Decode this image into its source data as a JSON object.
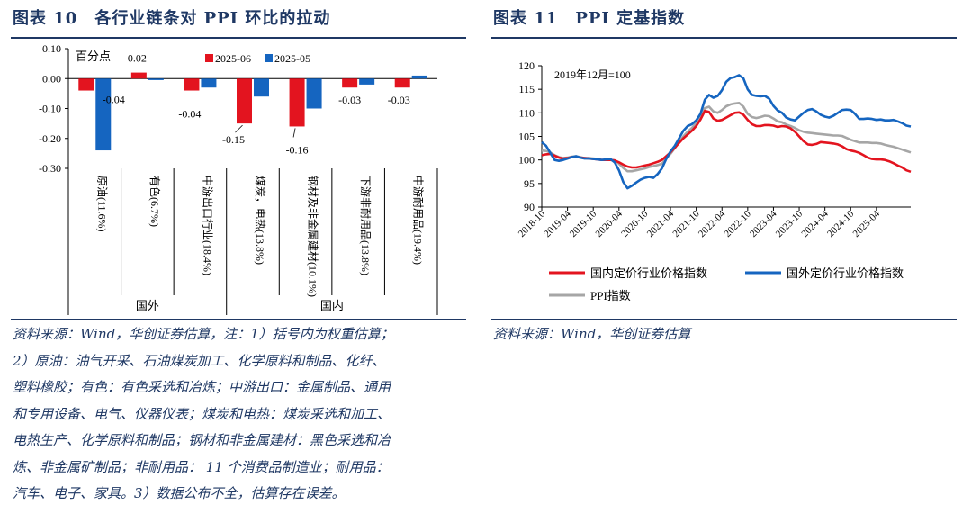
{
  "left": {
    "title": "图表 10　各行业链条对 PPI 环比的拉动",
    "source_lines": [
      "资料来源：Wind，华创证券估算，注：1）括号内为权重估算；",
      "2）原油：油气开采、石油煤炭加工、化学原料和制品、化纤、",
      "塑料橡胶；有色：有色采选和冶炼；中游出口：金属制品、通用",
      "和专用设备、电气、仪器仪表；煤炭和电热：煤炭采选和加工、",
      "电热生产、化学原料和制品；钢材和非金属建材：黑色采选和冶",
      "炼、非金属矿制品；非耐用品： 11 个消费品制造业；耐用品：",
      "汽车、电子、家具。3）数据公布不全，估算存在误差。"
    ]
  },
  "right": {
    "title": "图表 11　PPI 定基指数",
    "source": "资料来源：Wind，华创证券估算"
  },
  "chart_data": [
    {
      "type": "bar",
      "unit_label": "百分点",
      "categories": [
        "原油(11.6%)",
        "有色(6.7%)",
        "中游出口行业(18.4%)",
        "煤炭，电热(13.8%)",
        "钢材及非金属建材(10.1%)",
        "下游非耐用品(13.8%)",
        "中游耐用品(19.4%)"
      ],
      "groups": [
        {
          "label": "国外",
          "categories": [
            "原油(11.6%)",
            "有色(6.7%)",
            "中游出口行业(18.4%)"
          ]
        },
        {
          "label": "国内",
          "categories": [
            "煤炭，电热(13.8%)",
            "钢材及非金属建材(10.1%)",
            "下游非耐用品(13.8%)",
            "中游耐用品(19.4%)"
          ]
        }
      ],
      "series": [
        {
          "name": "2025-06",
          "color": "#e3141f",
          "values": [
            -0.04,
            0.02,
            -0.04,
            -0.15,
            -0.16,
            -0.03,
            -0.03
          ]
        },
        {
          "name": "2025-05",
          "color": "#1565c0",
          "values": [
            -0.24,
            -0.005,
            -0.03,
            -0.06,
            -0.1,
            -0.02,
            0.01
          ]
        }
      ],
      "data_labels": [
        "-0.04",
        "0.02",
        "-0.04",
        "-0.15",
        "-0.16",
        "-0.03",
        "-0.03"
      ],
      "ylim": [
        -0.3,
        0.1
      ],
      "yticks": [
        "0.10",
        "0.00",
        "-0.10",
        "-0.20",
        "-0.30"
      ],
      "legend": "top"
    },
    {
      "type": "line",
      "annotation": "2019年12月=100",
      "x_ticks": [
        "2018-10",
        "2019-04",
        "2019-10",
        "2020-04",
        "2020-10",
        "2021-04",
        "2021-10",
        "2022-04",
        "2022-10",
        "2023-04",
        "2023-10",
        "2024-04",
        "2024-10",
        "2025-04"
      ],
      "x_range": [
        "2018-10",
        "2025-06"
      ],
      "ylim": [
        90,
        120
      ],
      "yticks": [
        90,
        95,
        100,
        105,
        110,
        115,
        120
      ],
      "legend": "bottom",
      "series": [
        {
          "name": "国内定价行业价格指数",
          "color": "#e3141f",
          "values": [
            101.0,
            101.2,
            101.3,
            100.9,
            100.5,
            100.3,
            100.4,
            100.6,
            100.7,
            100.5,
            100.4,
            100.3,
            100.2,
            100.1,
            100.0,
            100.0,
            100.0,
            99.9,
            99.5,
            99.0,
            98.6,
            98.4,
            98.4,
            98.6,
            98.8,
            99.0,
            99.3,
            99.6,
            100.0,
            100.8,
            101.6,
            102.6,
            103.6,
            104.6,
            105.4,
            106.2,
            107.2,
            108.6,
            110.4,
            110.2,
            108.8,
            108.3,
            108.5,
            109.0,
            109.5,
            110.0,
            110.1,
            109.6,
            108.5,
            107.6,
            107.2,
            107.2,
            107.4,
            107.4,
            107.3,
            107.0,
            107.2,
            107.1,
            106.7,
            106.0,
            105.0,
            104.0,
            103.3,
            103.2,
            103.4,
            103.8,
            103.7,
            103.6,
            103.5,
            103.3,
            102.9,
            102.3,
            102.0,
            101.8,
            101.5,
            101.0,
            100.5,
            100.2,
            100.1,
            100.1,
            100.0,
            99.7,
            99.3,
            98.8,
            98.4,
            97.8,
            97.5
          ]
        },
        {
          "name": "国外定价行业价格指数",
          "color": "#1565c0",
          "values": [
            103.8,
            103.0,
            101.5,
            100.0,
            99.8,
            100.0,
            100.3,
            100.6,
            100.8,
            100.5,
            100.3,
            100.3,
            100.2,
            100.1,
            100.0,
            100.1,
            100.2,
            99.5,
            97.8,
            95.3,
            94.0,
            94.5,
            95.2,
            95.8,
            96.2,
            96.4,
            96.2,
            97.0,
            98.2,
            100.2,
            101.8,
            103.0,
            104.6,
            106.2,
            107.2,
            107.6,
            108.4,
            109.8,
            112.8,
            113.8,
            113.2,
            113.6,
            114.8,
            116.6,
            117.4,
            117.6,
            118.0,
            117.3,
            115.0,
            113.8,
            113.6,
            113.5,
            113.6,
            113.0,
            111.5,
            110.5,
            110.0,
            109.0,
            108.6,
            108.4,
            109.2,
            110.0,
            110.6,
            110.8,
            110.3,
            109.6,
            109.2,
            109.0,
            109.4,
            110.0,
            110.6,
            110.7,
            110.6,
            109.8,
            108.7,
            108.7,
            108.8,
            108.7,
            108.5,
            108.6,
            108.4,
            108.4,
            108.5,
            108.2,
            107.8,
            107.3,
            107.1
          ]
        },
        {
          "name": "PPI指数",
          "color": "#a6a6a6",
          "values": [
            102.0,
            101.9,
            101.6,
            101.0,
            100.6,
            100.4,
            100.5,
            100.7,
            100.8,
            100.6,
            100.4,
            100.4,
            100.3,
            100.2,
            100.0,
            100.0,
            100.0,
            99.9,
            99.2,
            98.3,
            97.6,
            97.6,
            97.8,
            98.0,
            98.2,
            98.5,
            98.7,
            98.9,
            99.2,
            100.3,
            101.3,
            102.5,
            103.8,
            105.0,
            106.0,
            106.8,
            107.8,
            109.3,
            111.0,
            111.3,
            110.3,
            110.0,
            110.6,
            111.4,
            111.8,
            112.0,
            112.1,
            111.3,
            109.8,
            109.1,
            108.9,
            109.1,
            109.4,
            109.3,
            108.8,
            108.2,
            108.0,
            107.5,
            107.2,
            106.8,
            106.3,
            106.0,
            105.8,
            105.7,
            105.6,
            105.5,
            105.4,
            105.3,
            105.2,
            105.2,
            105.1,
            104.7,
            104.3,
            104.0,
            103.7,
            103.7,
            103.7,
            103.6,
            103.6,
            103.5,
            103.2,
            103.0,
            102.8,
            102.5,
            102.2,
            101.9,
            101.6
          ]
        }
      ]
    }
  ]
}
